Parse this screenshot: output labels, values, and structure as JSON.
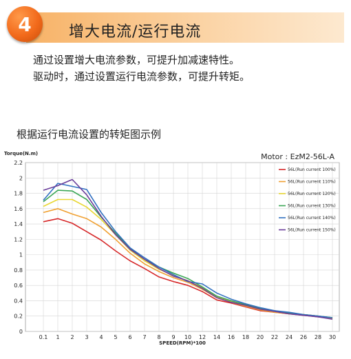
{
  "header": {
    "number": "4",
    "title": "增大电流/运行电流"
  },
  "description": {
    "line1": "通过设置增大电流参数，可提升加减速特性。",
    "line2": "驱动时，通过设置运行电流参数，可提升转矩。"
  },
  "chart_heading": "根据运行电流设置的转矩图示例",
  "chart_data": {
    "type": "line",
    "model_label": "Motor : EzM2-56L-A",
    "ylabel": "Torque(N.m)",
    "xlabel": "SPEED(RPM)*100",
    "categories": [
      "0.1",
      "1",
      "2",
      "3",
      "4",
      "5",
      "6",
      "7",
      "8",
      "9",
      "10",
      "12",
      "14",
      "16",
      "18",
      "20",
      "22",
      "24",
      "26",
      "28",
      "30"
    ],
    "ylim": [
      0,
      2.2
    ],
    "yticks": [
      0,
      0.2,
      0.4,
      0.6,
      0.8,
      1,
      1.2,
      1.4,
      1.6,
      1.8,
      2,
      2.2
    ],
    "legend_position": "top-right",
    "grid": true,
    "series": [
      {
        "name": "56L(Run current 100%)",
        "color": "#d62728",
        "values": [
          1.43,
          1.47,
          1.41,
          1.3,
          1.19,
          1.05,
          0.92,
          0.82,
          0.71,
          0.65,
          0.6,
          0.52,
          0.41,
          0.37,
          0.32,
          0.27,
          0.25,
          0.23,
          0.21,
          0.19,
          0.17
        ]
      },
      {
        "name": "56L(Run current 110%)",
        "color": "#f0a030",
        "values": [
          1.55,
          1.6,
          1.53,
          1.47,
          1.36,
          1.2,
          1.02,
          0.88,
          0.78,
          0.7,
          0.64,
          0.55,
          0.44,
          0.38,
          0.33,
          0.28,
          0.25,
          0.23,
          0.22,
          0.2,
          0.17
        ]
      },
      {
        "name": "56L(Run current 120%)",
        "color": "#e8d630",
        "values": [
          1.63,
          1.72,
          1.72,
          1.62,
          1.46,
          1.26,
          1.06,
          0.92,
          0.81,
          0.73,
          0.66,
          0.57,
          0.45,
          0.39,
          0.34,
          0.29,
          0.26,
          0.24,
          0.22,
          0.2,
          0.18
        ]
      },
      {
        "name": "56L(Run current 130%)",
        "color": "#3aa655",
        "values": [
          1.69,
          1.84,
          1.83,
          1.72,
          1.49,
          1.28,
          1.08,
          0.94,
          0.84,
          0.76,
          0.69,
          0.58,
          0.46,
          0.4,
          0.35,
          0.3,
          0.27,
          0.24,
          0.22,
          0.2,
          0.18
        ]
      },
      {
        "name": "56L(Run current 140%)",
        "color": "#2f6fc0",
        "values": [
          1.71,
          1.93,
          1.89,
          1.85,
          1.55,
          1.3,
          1.09,
          0.96,
          0.84,
          0.74,
          0.65,
          0.62,
          0.5,
          0.42,
          0.36,
          0.31,
          0.27,
          0.25,
          0.22,
          0.2,
          0.18
        ]
      },
      {
        "name": "56L(Run current 150%)",
        "color": "#6a3d9a",
        "values": [
          1.84,
          1.9,
          1.98,
          1.78,
          1.5,
          1.26,
          1.07,
          0.94,
          0.82,
          0.72,
          0.66,
          0.56,
          0.44,
          0.38,
          0.34,
          0.29,
          0.26,
          0.23,
          0.21,
          0.19,
          0.16
        ]
      }
    ]
  }
}
